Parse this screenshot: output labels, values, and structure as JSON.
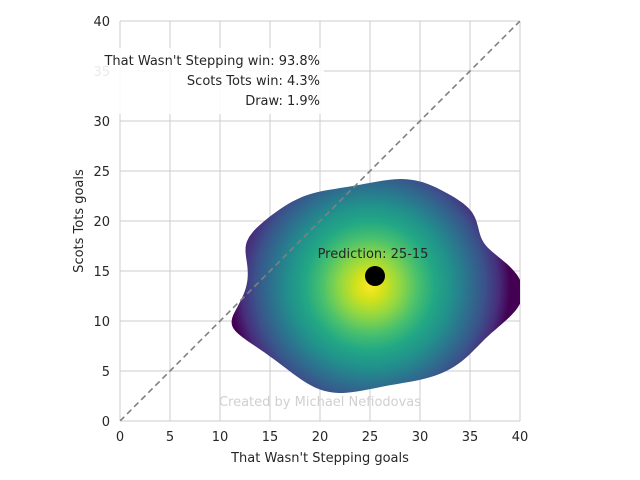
{
  "chart_data": {
    "type": "heatmap",
    "xlabel": "That Wasn't Stepping goals",
    "ylabel": "Scots Tots goals",
    "xlim": [
      0,
      40
    ],
    "ylim": [
      0,
      40
    ],
    "x_ticks": [
      0,
      5,
      10,
      15,
      20,
      25,
      30,
      35,
      40
    ],
    "y_ticks": [
      0,
      5,
      10,
      15,
      20,
      25,
      30,
      35,
      40
    ],
    "grid": true,
    "colormap": "viridis",
    "density_center": [
      25,
      13.5
    ],
    "prediction_point": {
      "x": 25.5,
      "y": 14.5,
      "color": "#000000"
    },
    "prediction_label": "Prediction: 25-15",
    "diagonal": {
      "from": [
        0,
        0
      ],
      "to": [
        40,
        40
      ],
      "style": "dashed",
      "color": "#808080"
    },
    "probabilities": [
      {
        "label": "That Wasn't Stepping win: 93.8%"
      },
      {
        "label": "Scots Tots win: 4.3%"
      },
      {
        "label": "Draw: 1.9%"
      }
    ],
    "watermark": "Created by Michael Nefiodovas"
  }
}
